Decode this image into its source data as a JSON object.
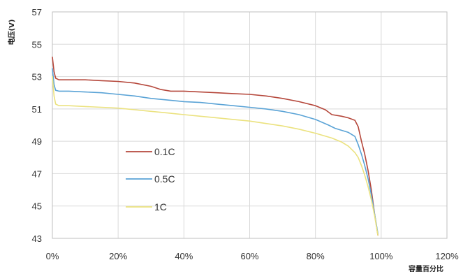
{
  "chart_data": {
    "type": "line",
    "title": "",
    "xlabel": "容量百分比",
    "ylabel": "电压(V)",
    "xlim": [
      0,
      120
    ],
    "ylim": [
      43,
      57
    ],
    "x_ticks": [
      "0%",
      "20%",
      "40%",
      "60%",
      "80%",
      "100%",
      "120%"
    ],
    "y_ticks": [
      "43",
      "45",
      "47",
      "49",
      "51",
      "53",
      "55",
      "57"
    ],
    "grid": true,
    "legend_position": "inside-lower-left",
    "series": [
      {
        "name": "0.1C",
        "color": "#b5473b",
        "points": [
          [
            0,
            54.2
          ],
          [
            0.5,
            53.3
          ],
          [
            1,
            52.9
          ],
          [
            2,
            52.8
          ],
          [
            5,
            52.8
          ],
          [
            10,
            52.8
          ],
          [
            15,
            52.75
          ],
          [
            20,
            52.7
          ],
          [
            25,
            52.6
          ],
          [
            30,
            52.4
          ],
          [
            33,
            52.2
          ],
          [
            36,
            52.1
          ],
          [
            40,
            52.1
          ],
          [
            45,
            52.05
          ],
          [
            50,
            52.0
          ],
          [
            55,
            51.95
          ],
          [
            60,
            51.9
          ],
          [
            65,
            51.8
          ],
          [
            70,
            51.65
          ],
          [
            75,
            51.45
          ],
          [
            80,
            51.2
          ],
          [
            83,
            50.95
          ],
          [
            85,
            50.65
          ],
          [
            88,
            50.55
          ],
          [
            90,
            50.45
          ],
          [
            92,
            50.3
          ],
          [
            93,
            49.9
          ],
          [
            94,
            49.0
          ],
          [
            95,
            48.2
          ],
          [
            96,
            47.2
          ],
          [
            97,
            46.0
          ],
          [
            98,
            44.5
          ],
          [
            99,
            43.2
          ]
        ]
      },
      {
        "name": "0.5C",
        "color": "#5aa3d6",
        "points": [
          [
            0,
            53.5
          ],
          [
            0.5,
            52.5
          ],
          [
            1,
            52.15
          ],
          [
            2,
            52.1
          ],
          [
            5,
            52.1
          ],
          [
            10,
            52.05
          ],
          [
            15,
            52.0
          ],
          [
            20,
            51.9
          ],
          [
            25,
            51.8
          ],
          [
            30,
            51.65
          ],
          [
            35,
            51.55
          ],
          [
            40,
            51.45
          ],
          [
            45,
            51.4
          ],
          [
            50,
            51.3
          ],
          [
            55,
            51.2
          ],
          [
            60,
            51.1
          ],
          [
            65,
            51.0
          ],
          [
            70,
            50.85
          ],
          [
            75,
            50.65
          ],
          [
            80,
            50.35
          ],
          [
            84,
            50.0
          ],
          [
            86,
            49.8
          ],
          [
            90,
            49.55
          ],
          [
            92,
            49.3
          ],
          [
            93,
            48.8
          ],
          [
            94,
            48.2
          ],
          [
            95,
            47.5
          ],
          [
            96,
            46.7
          ],
          [
            97,
            45.7
          ],
          [
            98,
            44.5
          ],
          [
            99,
            43.3
          ]
        ]
      },
      {
        "name": "1C",
        "color": "#ebe27f",
        "points": [
          [
            0,
            53.0
          ],
          [
            0.5,
            51.8
          ],
          [
            1,
            51.3
          ],
          [
            2,
            51.2
          ],
          [
            5,
            51.2
          ],
          [
            10,
            51.15
          ],
          [
            15,
            51.1
          ],
          [
            20,
            51.05
          ],
          [
            25,
            50.95
          ],
          [
            30,
            50.85
          ],
          [
            35,
            50.75
          ],
          [
            40,
            50.65
          ],
          [
            45,
            50.55
          ],
          [
            50,
            50.45
          ],
          [
            55,
            50.35
          ],
          [
            60,
            50.25
          ],
          [
            65,
            50.1
          ],
          [
            70,
            49.95
          ],
          [
            75,
            49.75
          ],
          [
            80,
            49.5
          ],
          [
            85,
            49.2
          ],
          [
            88,
            48.95
          ],
          [
            90,
            48.7
          ],
          [
            92,
            48.3
          ],
          [
            93,
            48.0
          ],
          [
            94,
            47.5
          ],
          [
            95,
            46.9
          ],
          [
            96,
            46.2
          ],
          [
            97,
            45.4
          ],
          [
            98,
            44.4
          ],
          [
            99,
            43.2
          ]
        ]
      }
    ]
  }
}
